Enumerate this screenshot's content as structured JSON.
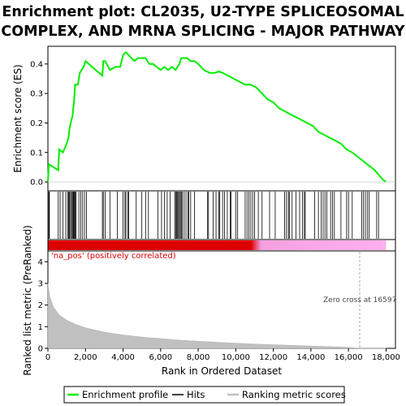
{
  "chart_data": {
    "type": "line",
    "title_lines": [
      "Enrichment plot: CL2035, U2-TYPE SPLICEOSOMAL",
      "COMPLEX, AND MRNA SPLICING - MAJOR PATHWAY"
    ],
    "top_panel": {
      "ylabel": "Enrichment score (ES)",
      "ylim": [
        -0.03,
        0.46
      ],
      "yticks": [
        0.0,
        0.1,
        0.2,
        0.3,
        0.4
      ],
      "ytick_labels": [
        "0.0",
        "0.1",
        "0.2",
        "0.3",
        "0.4"
      ],
      "series": [
        {
          "name": "Enrichment profile",
          "color": "#00ee00",
          "x": [
            0,
            50,
            550,
            600,
            800,
            1000,
            1100,
            1150,
            1250,
            1300,
            1400,
            1450,
            1600,
            1700,
            1800,
            1900,
            2000,
            2900,
            2950,
            3050,
            3300,
            3600,
            3850,
            4000,
            4150,
            4300,
            4600,
            4800,
            5000,
            5200,
            5400,
            5600,
            5800,
            6000,
            6200,
            6400,
            6600,
            6800,
            6900,
            7000,
            7100,
            7200,
            7400,
            7600,
            7800,
            8000,
            8300,
            8600,
            8900,
            9100,
            9300,
            9600,
            9900,
            10200,
            10500,
            10800,
            11100,
            11400,
            11700,
            12000,
            12300,
            12600,
            12900,
            13200,
            13500,
            13800,
            14100,
            14400,
            14700,
            15000,
            15300,
            15600,
            15900,
            16200,
            16600,
            17000,
            17400,
            17800,
            18000
          ],
          "y": [
            0.0,
            0.06,
            0.04,
            0.11,
            0.1,
            0.13,
            0.15,
            0.18,
            0.21,
            0.22,
            0.28,
            0.33,
            0.33,
            0.37,
            0.38,
            0.39,
            0.41,
            0.36,
            0.41,
            0.41,
            0.38,
            0.39,
            0.39,
            0.43,
            0.44,
            0.43,
            0.41,
            0.42,
            0.42,
            0.42,
            0.4,
            0.4,
            0.39,
            0.38,
            0.39,
            0.38,
            0.39,
            0.38,
            0.39,
            0.4,
            0.42,
            0.42,
            0.42,
            0.41,
            0.41,
            0.4,
            0.38,
            0.37,
            0.37,
            0.375,
            0.37,
            0.36,
            0.35,
            0.34,
            0.33,
            0.33,
            0.32,
            0.3,
            0.28,
            0.27,
            0.25,
            0.24,
            0.23,
            0.22,
            0.21,
            0.2,
            0.19,
            0.17,
            0.16,
            0.15,
            0.14,
            0.13,
            0.11,
            0.1,
            0.08,
            0.06,
            0.04,
            0.01,
            0.0
          ]
        }
      ]
    },
    "hits": [
      50,
      80,
      550,
      650,
      800,
      950,
      1050,
      1100,
      1150,
      1200,
      1260,
      1300,
      1350,
      1380,
      1420,
      1460,
      1500,
      1650,
      1750,
      1850,
      1950,
      2050,
      2900,
      2950,
      3050,
      3300,
      3700,
      4000,
      4100,
      4150,
      4250,
      4300,
      4700,
      5000,
      5200,
      5350,
      5850,
      6050,
      6200,
      6350,
      6500,
      6750,
      6800,
      6850,
      6900,
      6950,
      7000,
      7050,
      7100,
      7150,
      7250,
      7350,
      7450,
      7500,
      7600,
      7800,
      8500,
      8550,
      8800,
      8950,
      9100,
      9150,
      9300,
      9400,
      9550,
      9700,
      9750,
      10000,
      10100,
      10500,
      10600,
      10700,
      10800,
      10900,
      11000,
      11200,
      11400,
      11800,
      12100,
      12600,
      12700,
      12800,
      12850,
      13000,
      13200,
      13400,
      13550,
      13650,
      13700,
      14200,
      14400,
      14550,
      14650,
      14750,
      14850,
      15050,
      15150,
      15250,
      15600,
      15900,
      16000,
      16200,
      16700,
      16800,
      16900,
      17000,
      17100,
      17500,
      17600
    ],
    "heatmap_label": "'na_pos' (positively correlated)",
    "heatmap_colors": {
      "pos": "#dd0000",
      "mid": "#f4a0e0",
      "neg": "#ffb0f0"
    },
    "bottom_panel": {
      "ylabel": "Ranked list metric (PreRanked)",
      "ylim": [
        0,
        4.5
      ],
      "yticks": [
        0,
        1,
        2,
        3,
        4
      ],
      "ytick_labels": [
        "0",
        "1",
        "2",
        "3",
        "4"
      ],
      "metric_x": [
        0,
        100,
        300,
        600,
        1000,
        1500,
        2000,
        3000,
        4000,
        5000,
        6000,
        7000,
        8000,
        9000,
        10000,
        11000,
        12000,
        13000,
        14000,
        15000,
        16000,
        16597,
        17000,
        18000
      ],
      "metric_y": [
        3.0,
        2.4,
        1.9,
        1.55,
        1.3,
        1.1,
        0.95,
        0.75,
        0.62,
        0.52,
        0.45,
        0.38,
        0.33,
        0.28,
        0.24,
        0.2,
        0.17,
        0.14,
        0.11,
        0.08,
        0.05,
        0.0,
        -0.02,
        -0.05
      ],
      "zero_cross_label": "Zero cross at 16597",
      "zero_cross_x": 16597
    },
    "xlabel": "Rank in Ordered Dataset",
    "xlim": [
      0,
      18500
    ],
    "xticks": [
      0,
      2000,
      4000,
      6000,
      8000,
      10000,
      12000,
      14000,
      16000,
      18000
    ],
    "xtick_labels": [
      "0",
      "2,000",
      "4,000",
      "6,000",
      "8,000",
      "10,000",
      "12,000",
      "14,000",
      "16,000",
      "18,000"
    ],
    "legend": {
      "items": [
        {
          "label": "Enrichment profile",
          "color": "#00ee00"
        },
        {
          "label": "Hits",
          "color": "#000000"
        },
        {
          "label": "Ranking metric scores",
          "color": "#c0c0c0"
        }
      ]
    }
  }
}
